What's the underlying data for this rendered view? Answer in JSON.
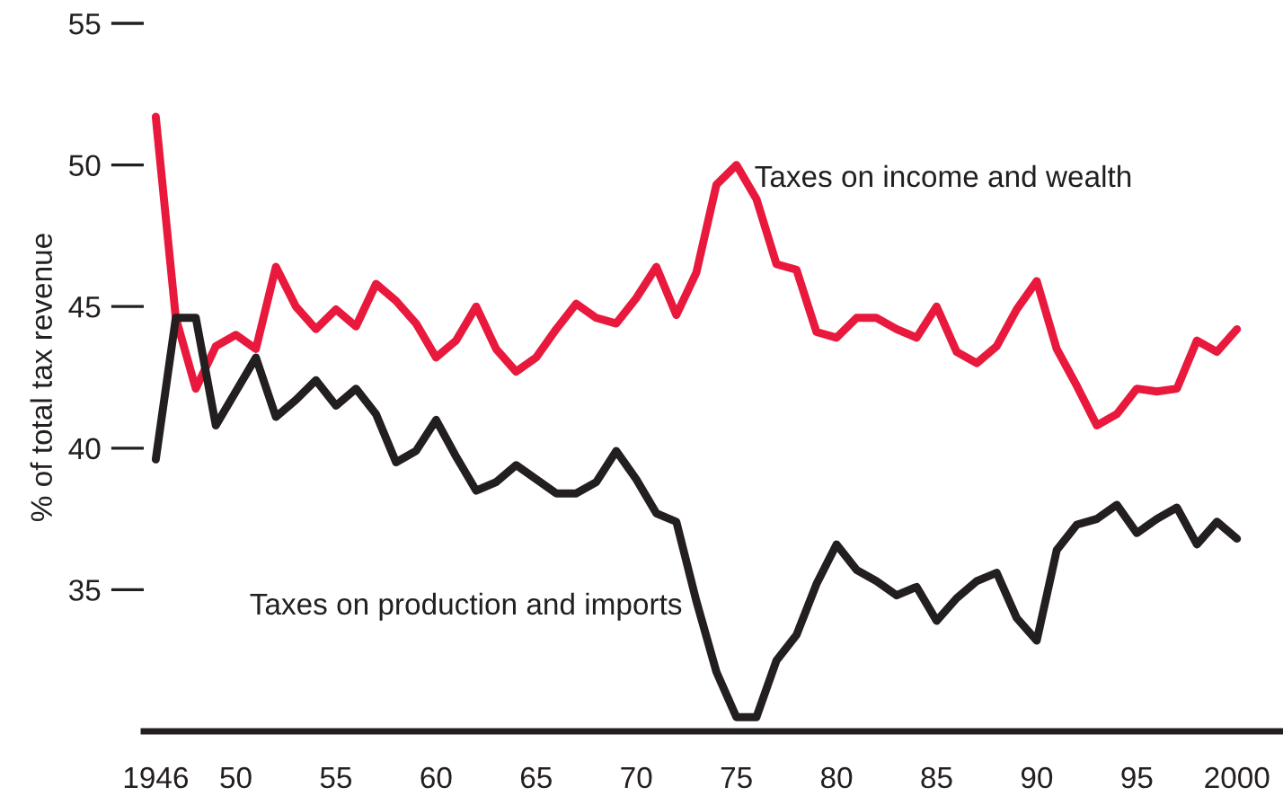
{
  "chart_data": {
    "type": "line",
    "ylabel": "% of total tax revenue",
    "x": [
      1946,
      1947,
      1948,
      1949,
      1950,
      1951,
      1952,
      1953,
      1954,
      1955,
      1956,
      1957,
      1958,
      1959,
      1960,
      1961,
      1962,
      1963,
      1964,
      1965,
      1966,
      1967,
      1968,
      1969,
      1970,
      1971,
      1972,
      1973,
      1974,
      1975,
      1976,
      1977,
      1978,
      1979,
      1980,
      1981,
      1982,
      1983,
      1984,
      1985,
      1986,
      1987,
      1988,
      1989,
      1990,
      1991,
      1992,
      1993,
      1994,
      1995,
      1996,
      1997,
      1998,
      1999,
      2000
    ],
    "series": [
      {
        "name": "Taxes on income and wealth",
        "color": "#e8193c",
        "values": [
          51.7,
          44.6,
          42.1,
          43.6,
          44.0,
          43.5,
          46.4,
          45.0,
          44.2,
          44.9,
          44.3,
          45.8,
          45.2,
          44.4,
          43.2,
          43.8,
          45.0,
          43.5,
          42.7,
          43.2,
          44.2,
          45.1,
          44.6,
          44.4,
          45.3,
          46.4,
          44.7,
          46.2,
          49.3,
          50.0,
          48.8,
          46.5,
          46.3,
          44.1,
          43.9,
          44.6,
          44.6,
          44.2,
          43.9,
          45.0,
          43.4,
          43.0,
          43.6,
          44.9,
          45.9,
          43.5,
          42.2,
          40.8,
          41.2,
          42.1,
          42.0,
          42.1,
          43.8,
          43.4,
          44.2
        ]
      },
      {
        "name": "Taxes on production and imports",
        "color": "#231f20",
        "values": [
          39.6,
          44.6,
          44.6,
          40.8,
          42.0,
          43.2,
          41.1,
          41.7,
          42.4,
          41.5,
          42.1,
          41.2,
          39.5,
          39.9,
          41.0,
          39.7,
          38.5,
          38.8,
          39.4,
          38.9,
          38.4,
          38.4,
          38.8,
          39.9,
          38.9,
          37.7,
          37.4,
          34.6,
          32.1,
          30.5,
          30.5,
          32.5,
          33.4,
          35.2,
          36.6,
          35.7,
          35.3,
          34.8,
          35.1,
          33.9,
          34.7,
          35.3,
          35.6,
          34.0,
          33.2,
          36.4,
          37.3,
          37.5,
          38.0,
          37.0,
          37.5,
          37.9,
          36.6,
          37.4,
          36.8
        ]
      }
    ],
    "xlim": [
      1945.4,
      2002.3
    ],
    "xticks": [
      1946,
      {
        "value": 1950,
        "label": "50"
      },
      {
        "value": 1955,
        "label": "55"
      },
      {
        "value": 1960,
        "label": "60"
      },
      {
        "value": 1965,
        "label": "65"
      },
      {
        "value": 1970,
        "label": "70"
      },
      {
        "value": 1975,
        "label": "75"
      },
      {
        "value": 1980,
        "label": "80"
      },
      {
        "value": 1985,
        "label": "85"
      },
      {
        "value": 1990,
        "label": "90"
      },
      {
        "value": 1995,
        "label": "95"
      },
      2000
    ],
    "ylim": [
      30,
      55
    ],
    "yticks": [
      35,
      40,
      45,
      50,
      55
    ],
    "grid": false,
    "legend": false,
    "marker": "none",
    "line_style": "solid"
  }
}
